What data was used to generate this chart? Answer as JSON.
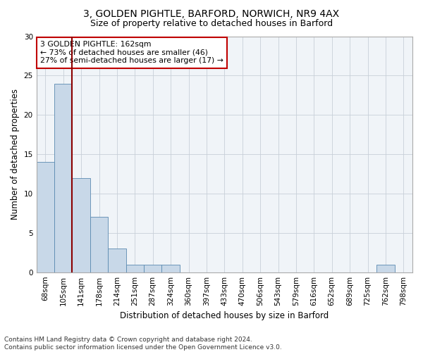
{
  "title1": "3, GOLDEN PIGHTLE, BARFORD, NORWICH, NR9 4AX",
  "title2": "Size of property relative to detached houses in Barford",
  "xlabel": "Distribution of detached houses by size in Barford",
  "ylabel": "Number of detached properties",
  "categories": [
    "68sqm",
    "105sqm",
    "141sqm",
    "178sqm",
    "214sqm",
    "251sqm",
    "287sqm",
    "324sqm",
    "360sqm",
    "397sqm",
    "433sqm",
    "470sqm",
    "506sqm",
    "543sqm",
    "579sqm",
    "616sqm",
    "652sqm",
    "689sqm",
    "725sqm",
    "762sqm",
    "798sqm"
  ],
  "values": [
    14,
    24,
    12,
    7,
    3,
    1,
    1,
    1,
    0,
    0,
    0,
    0,
    0,
    0,
    0,
    0,
    0,
    0,
    0,
    1,
    0
  ],
  "bar_color": "#c8d8e8",
  "bar_edge_color": "#5a8ab0",
  "annotation_line1": "3 GOLDEN PIGHTLE: 162sqm",
  "annotation_line2": "← 73% of detached houses are smaller (46)",
  "annotation_line3": "27% of semi-detached houses are larger (17) →",
  "annotation_box_color": "#c00000",
  "vline_x_index": 2,
  "vline_color": "#8b0000",
  "ylim": [
    0,
    30
  ],
  "yticks": [
    0,
    5,
    10,
    15,
    20,
    25,
    30
  ],
  "footnote": "Contains HM Land Registry data © Crown copyright and database right 2024.\nContains public sector information licensed under the Open Government Licence v3.0.",
  "title1_fontsize": 10,
  "title2_fontsize": 9,
  "xlabel_fontsize": 8.5,
  "ylabel_fontsize": 8.5,
  "tick_fontsize": 7.5,
  "footnote_fontsize": 6.5
}
